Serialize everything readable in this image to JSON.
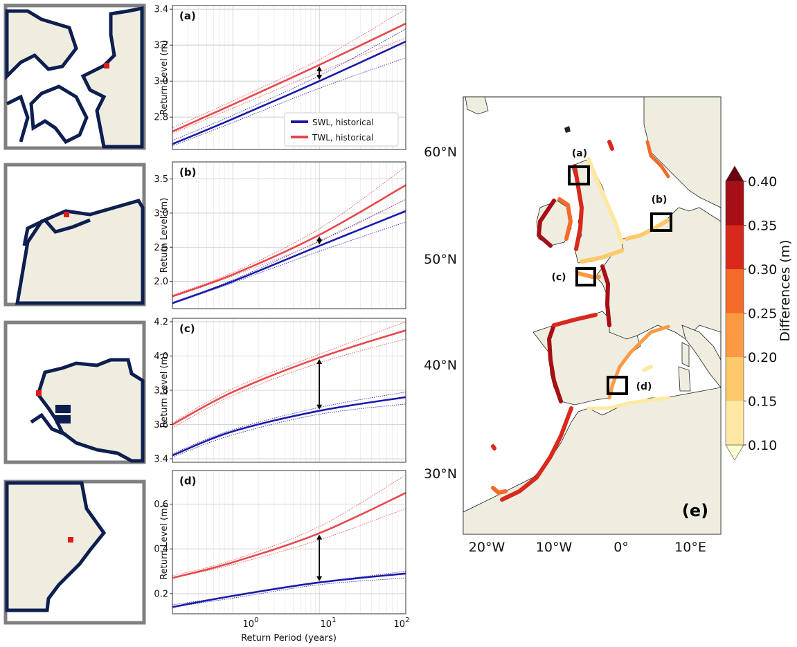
{
  "colors": {
    "swl": "#1a1aaa",
    "twl": "#e8474a",
    "land": "#efeddf",
    "coast": "#0d1f4f",
    "point": "#e01a1a",
    "inset_border": "#7f7f7f"
  },
  "chart_data": [
    {
      "type": "line",
      "panel": "(a)",
      "xscale": "log",
      "xlim": [
        0.2,
        100
      ],
      "ylim": [
        2.62,
        3.42
      ],
      "yticks": [
        2.8,
        3.0,
        3.2,
        3.4
      ],
      "ylabel": "Return Level (m)",
      "series": [
        {
          "name": "SWL, historical",
          "x": [
            0.2,
            1,
            10,
            100
          ],
          "y": [
            2.65,
            2.79,
            3.0,
            3.22
          ],
          "ci_lower": [
            2.64,
            2.77,
            2.96,
            3.13
          ],
          "ci_upper": [
            2.67,
            2.81,
            3.03,
            3.29
          ]
        },
        {
          "name": "TWL, historical",
          "x": [
            0.2,
            1,
            10,
            100
          ],
          "y": [
            2.72,
            2.87,
            3.09,
            3.32
          ],
          "ci_lower": [
            2.71,
            2.85,
            3.05,
            3.24
          ],
          "ci_upper": [
            2.74,
            2.89,
            3.12,
            3.4
          ]
        }
      ],
      "arrow_at_x": 10
    },
    {
      "type": "line",
      "panel": "(b)",
      "xscale": "log",
      "xlim": [
        0.2,
        100
      ],
      "ylim": [
        1.6,
        3.75
      ],
      "yticks": [
        2.0,
        2.5,
        3.0,
        3.5
      ],
      "ylabel": "Return Level (m)",
      "series": [
        {
          "name": "SWL, historical",
          "x": [
            0.2,
            1,
            10,
            100
          ],
          "y": [
            1.68,
            2.0,
            2.52,
            3.03
          ],
          "ci_lower": [
            1.67,
            1.98,
            2.44,
            2.87
          ],
          "ci_upper": [
            1.69,
            2.02,
            2.59,
            3.2
          ]
        },
        {
          "name": "TWL, historical",
          "x": [
            0.2,
            1,
            10,
            100
          ],
          "y": [
            1.78,
            2.1,
            2.68,
            3.41
          ],
          "ci_lower": [
            1.77,
            2.08,
            2.58,
            3.2
          ],
          "ci_upper": [
            1.8,
            2.13,
            2.77,
            3.68
          ]
        }
      ],
      "arrow_at_x": 10
    },
    {
      "type": "line",
      "panel": "(c)",
      "xscale": "log",
      "xlim": [
        0.2,
        100
      ],
      "ylim": [
        3.38,
        4.22
      ],
      "yticks": [
        3.4,
        3.6,
        3.8,
        4.0,
        4.2
      ],
      "ylabel": "Return Level (m)",
      "series": [
        {
          "name": "SWL, historical",
          "x": [
            0.2,
            1,
            10,
            100
          ],
          "y": [
            3.42,
            3.56,
            3.68,
            3.76
          ],
          "ci_lower": [
            3.41,
            3.54,
            3.66,
            3.72
          ],
          "ci_upper": [
            3.43,
            3.57,
            3.7,
            3.79
          ]
        },
        {
          "name": "TWL, historical",
          "x": [
            0.2,
            1,
            10,
            100
          ],
          "y": [
            3.6,
            3.79,
            3.99,
            4.15
          ],
          "ci_lower": [
            3.58,
            3.77,
            3.96,
            4.1
          ],
          "ci_upper": [
            3.61,
            3.81,
            4.01,
            4.2
          ]
        }
      ],
      "arrow_at_x": 10
    },
    {
      "type": "line",
      "panel": "(d)",
      "xscale": "log",
      "xlim": [
        0.2,
        100
      ],
      "ylim": [
        0.11,
        0.75
      ],
      "yticks": [
        0.2,
        0.4,
        0.6
      ],
      "ylabel": "Return Level (m)",
      "xlabel": "Return Period (years)",
      "xtick_labels": [
        "10",
        "10",
        "10"
      ],
      "xtick_exponents": [
        "0",
        "1",
        "2"
      ],
      "series": [
        {
          "name": "SWL, historical",
          "x": [
            0.2,
            1,
            10,
            100
          ],
          "y": [
            0.14,
            0.19,
            0.25,
            0.29
          ],
          "ci_lower": [
            0.14,
            0.18,
            0.24,
            0.27
          ],
          "ci_upper": [
            0.15,
            0.19,
            0.25,
            0.3
          ]
        },
        {
          "name": "TWL, historical",
          "x": [
            0.2,
            1,
            10,
            100
          ],
          "y": [
            0.27,
            0.34,
            0.47,
            0.65
          ],
          "ci_lower": [
            0.27,
            0.33,
            0.44,
            0.58
          ],
          "ci_upper": [
            0.28,
            0.35,
            0.5,
            0.73
          ]
        }
      ],
      "arrow_at_x": 10
    },
    {
      "type": "map",
      "panel": "(e)",
      "lat_ticks": [
        "30°N",
        "40°N",
        "50°N",
        "60°N"
      ],
      "lon_ticks": [
        "20°W",
        "10°W",
        "0°",
        "10°E"
      ],
      "box_labels": [
        "(a)",
        "(b)",
        "(c)",
        "(d)"
      ],
      "colorbar": {
        "label": "Differences (m)",
        "ticks": [
          "0.10",
          "0.15",
          "0.20",
          "0.25",
          "0.30",
          "0.35",
          "0.40"
        ],
        "colors": [
          "#ffffd4",
          "#fee8a3",
          "#fdc96a",
          "#fc9a44",
          "#f46a2a",
          "#d9281c",
          "#a50f15",
          "#6b0010"
        ]
      }
    }
  ],
  "legend": {
    "swl": "SWL, historical",
    "twl": "TWL, historical"
  }
}
